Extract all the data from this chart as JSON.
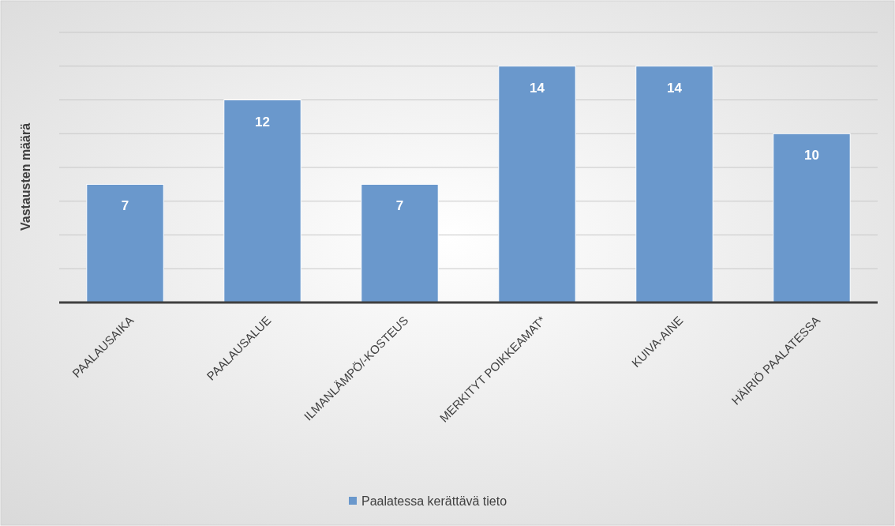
{
  "chart_data": {
    "type": "bar",
    "ylabel": "Vastausten määrä",
    "categories": [
      "PAALAUSAIKA",
      "PAALAUSALUE",
      "ILMANLÄMPÖ/-KOSTEUS",
      "MERKITYT POIKKEAMAT*",
      "KUIVA-AINE",
      "HÄIRIÖ PAALATESSA"
    ],
    "series": [
      {
        "name": "Paalatessa kerättävä tieto",
        "color": "#6a98cc",
        "values": [
          7,
          12,
          7,
          14,
          14,
          10
        ]
      }
    ],
    "ylim": [
      0,
      16
    ],
    "yticks": [
      {
        "value": 0,
        "label": null
      },
      {
        "value": 2,
        "label": null
      },
      {
        "value": 4,
        "label": null
      },
      {
        "value": 6,
        "label": null
      },
      {
        "value": 8,
        "label": null
      },
      {
        "value": 10,
        "label": null
      },
      {
        "value": 12,
        "label": null
      },
      {
        "value": 14,
        "label": null
      },
      {
        "value": 16,
        "label": null
      }
    ],
    "tick_labels": "x",
    "grid": "y",
    "data_labels": true,
    "legend": "bottom"
  }
}
